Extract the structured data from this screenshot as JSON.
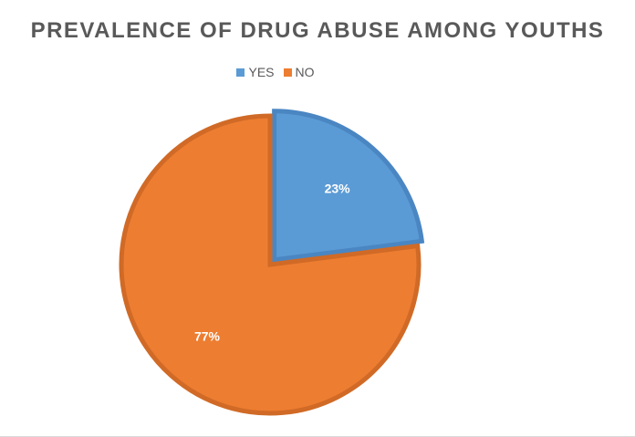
{
  "chart_data": {
    "type": "pie",
    "title": "PREVALENCE OF DRUG ABUSE AMONG YOUTHS",
    "legend_position": "top",
    "slices": [
      {
        "label": "YES",
        "value": 23,
        "display": "23%",
        "color": "#5b9bd5",
        "edge": "#4a86c2",
        "exploded": true
      },
      {
        "label": "NO",
        "value": 77,
        "display": "77%",
        "color": "#ed7d31",
        "edge": "#d06a26",
        "exploded": false
      }
    ]
  }
}
